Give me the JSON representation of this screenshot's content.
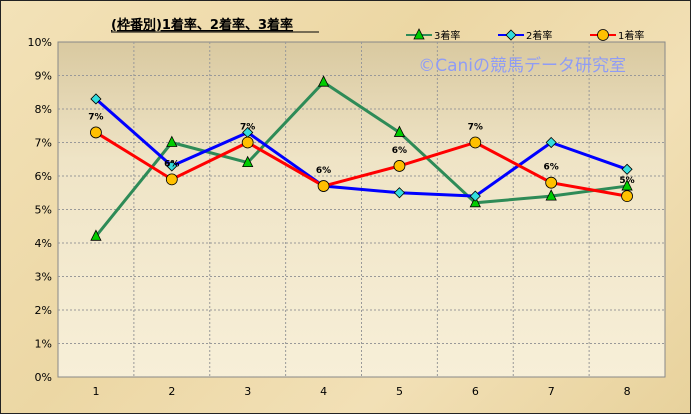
{
  "chart_data": {
    "type": "line",
    "title": "(枠番別)1着率、2着率、3着率",
    "watermark": "©Caniの競馬データ研究室",
    "categories": [
      "1",
      "2",
      "3",
      "4",
      "5",
      "6",
      "7",
      "8"
    ],
    "ylim": [
      0,
      10
    ],
    "yticks": [
      "0%",
      "1%",
      "2%",
      "3%",
      "4%",
      "5%",
      "6%",
      "7%",
      "8%",
      "9%",
      "10%"
    ],
    "grid": true,
    "legend_position": "top-right",
    "series": [
      {
        "name": "3着率",
        "color": "#2e8b57",
        "marker": "triangle",
        "marker_color": "#00cc00",
        "values": [
          4.2,
          7.0,
          6.4,
          8.8,
          7.3,
          5.2,
          5.4,
          5.7
        ]
      },
      {
        "name": "2着率",
        "color": "#0000ff",
        "marker": "diamond",
        "marker_color": "#33dddd",
        "values": [
          8.3,
          6.3,
          7.3,
          5.7,
          5.5,
          5.4,
          7.0,
          6.2
        ]
      },
      {
        "name": "1着率",
        "color": "#ff0000",
        "marker": "circle",
        "marker_color": "#ffc000",
        "values": [
          7.3,
          5.9,
          7.0,
          5.7,
          6.3,
          7.0,
          5.8,
          5.4
        ],
        "data_labels": [
          "7%",
          "6%",
          "7%",
          "6%",
          "6%",
          "7%",
          "6%",
          "5%"
        ]
      }
    ]
  }
}
